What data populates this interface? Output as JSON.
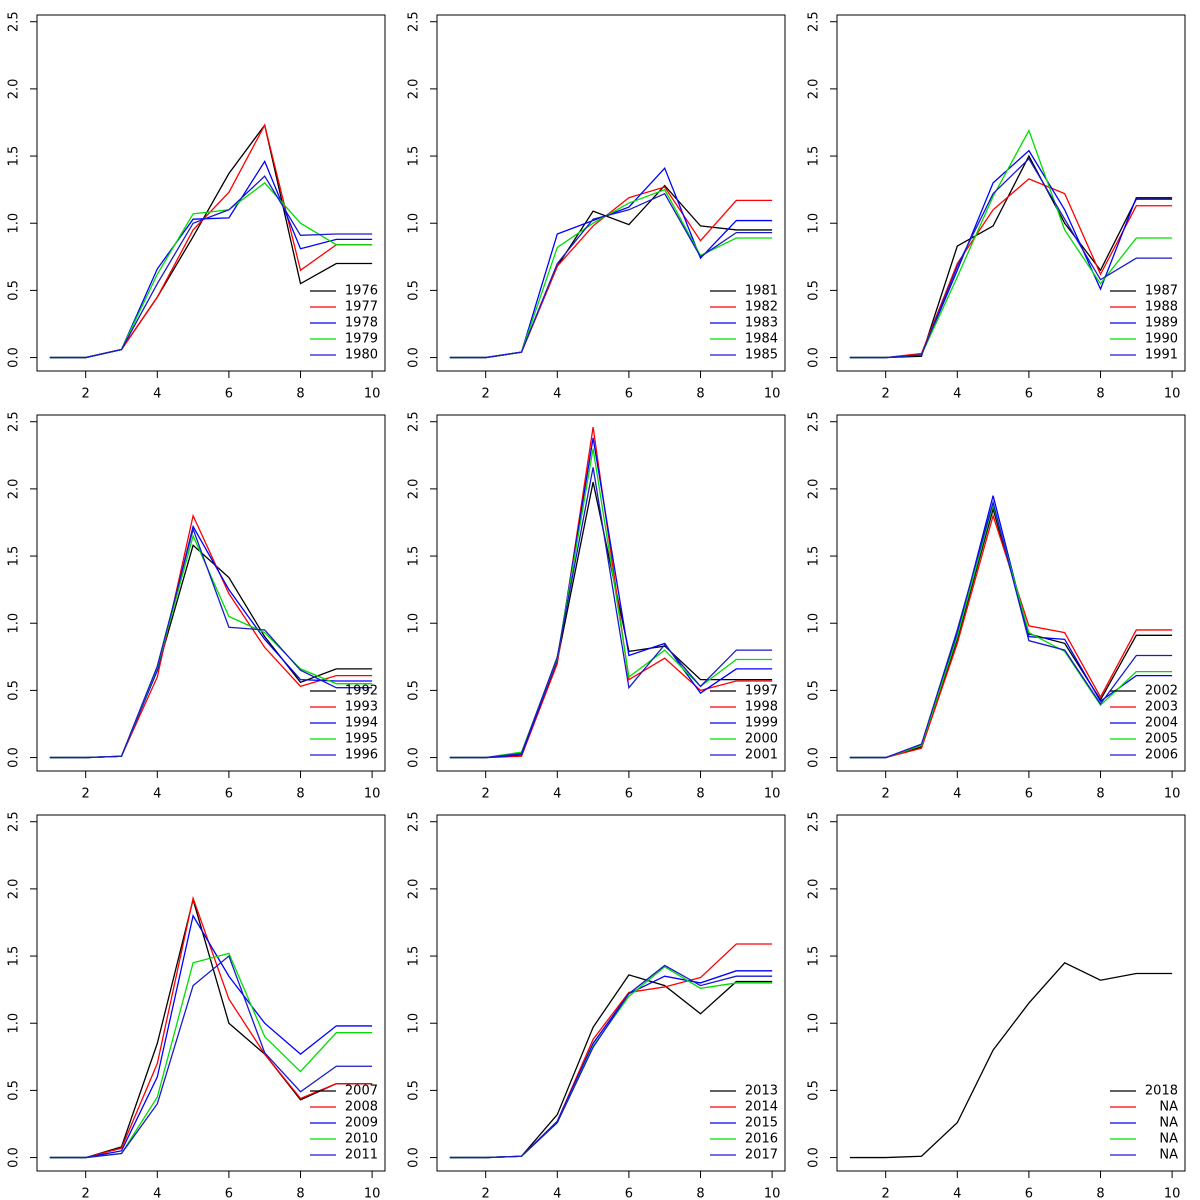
{
  "chart_data": [
    {
      "type": "line",
      "x": [
        1,
        2,
        3,
        4,
        5,
        6,
        7,
        8,
        9,
        10
      ],
      "xlim": [
        0.64,
        10.36
      ],
      "ylim": [
        -0.1,
        2.55
      ],
      "xticks": [
        2,
        4,
        6,
        8,
        10
      ],
      "yticks": [
        {
          "value": 0,
          "label": "0.0"
        },
        0.5,
        {
          "value": 1,
          "label": "1.0"
        },
        1.5,
        {
          "value": 2,
          "label": "2.0"
        },
        2.5
      ],
      "legend": "bottomright",
      "series": [
        {
          "name": "1976",
          "color": "#000000",
          "values": [
            0,
            0,
            0.06,
            0.45,
            0.9,
            1.37,
            1.73,
            0.55,
            0.7,
            0.7
          ]
        },
        {
          "name": "1977",
          "color": "#ff0000",
          "values": [
            0,
            0,
            0.06,
            0.45,
            0.95,
            1.23,
            1.73,
            0.65,
            0.84,
            0.84
          ]
        },
        {
          "name": "1978",
          "color": "#0000ff",
          "values": [
            0,
            0,
            0.06,
            0.66,
            1.03,
            1.04,
            1.46,
            0.81,
            0.88,
            0.88
          ]
        },
        {
          "name": "1979",
          "color": "#00dd00",
          "values": [
            0,
            0,
            0.06,
            0.62,
            1.07,
            1.1,
            1.3,
            1.0,
            0.84,
            0.84
          ]
        },
        {
          "name": "1980",
          "color": "#1a1acd",
          "values": [
            0,
            0,
            0.06,
            0.55,
            1.0,
            1.1,
            1.35,
            0.91,
            0.92,
            0.92
          ]
        }
      ]
    },
    {
      "type": "line",
      "x": [
        1,
        2,
        3,
        4,
        5,
        6,
        7,
        8,
        9,
        10
      ],
      "xlim": [
        0.64,
        10.36
      ],
      "ylim": [
        -0.1,
        2.55
      ],
      "xticks": [
        2,
        4,
        6,
        8,
        10
      ],
      "yticks": [
        {
          "value": 0,
          "label": "0.0"
        },
        0.5,
        {
          "value": 1,
          "label": "1.0"
        },
        1.5,
        {
          "value": 2,
          "label": "2.0"
        },
        2.5
      ],
      "legend": "bottomright",
      "series": [
        {
          "name": "1981",
          "color": "#000000",
          "values": [
            0,
            0,
            0.04,
            0.68,
            1.09,
            0.99,
            1.28,
            0.98,
            0.95,
            0.95
          ]
        },
        {
          "name": "1982",
          "color": "#ff0000",
          "values": [
            0,
            0,
            0.04,
            0.68,
            0.98,
            1.19,
            1.27,
            0.87,
            1.17,
            1.17
          ]
        },
        {
          "name": "1983",
          "color": "#0000ff",
          "values": [
            0,
            0,
            0.04,
            0.92,
            1.02,
            1.12,
            1.41,
            0.74,
            1.02,
            1.02
          ]
        },
        {
          "name": "1984",
          "color": "#00dd00",
          "values": [
            0,
            0,
            0.04,
            0.82,
            1.0,
            1.15,
            1.25,
            0.76,
            0.89,
            0.89
          ]
        },
        {
          "name": "1985",
          "color": "#1a1acd",
          "values": [
            0,
            0,
            0.04,
            0.7,
            1.03,
            1.1,
            1.22,
            0.75,
            0.93,
            0.93
          ]
        }
      ]
    },
    {
      "type": "line",
      "x": [
        1,
        2,
        3,
        4,
        5,
        6,
        7,
        8,
        9,
        10
      ],
      "xlim": [
        0.64,
        10.36
      ],
      "ylim": [
        -0.1,
        2.55
      ],
      "xticks": [
        2,
        4,
        6,
        8,
        10
      ],
      "yticks": [
        {
          "value": 0,
          "label": "0.0"
        },
        0.5,
        {
          "value": 1,
          "label": "1.0"
        },
        1.5,
        {
          "value": 2,
          "label": "2.0"
        },
        2.5
      ],
      "legend": "bottomright",
      "series": [
        {
          "name": "1987",
          "color": "#000000",
          "values": [
            0,
            0,
            0.01,
            0.83,
            0.98,
            1.5,
            1.0,
            0.65,
            1.18,
            1.18
          ]
        },
        {
          "name": "1988",
          "color": "#ff0000",
          "values": [
            0,
            0,
            0.03,
            0.7,
            1.1,
            1.33,
            1.22,
            0.62,
            1.13,
            1.13
          ]
        },
        {
          "name": "1989",
          "color": "#0000ff",
          "values": [
            0,
            0,
            0.02,
            0.65,
            1.3,
            1.54,
            1.1,
            0.51,
            1.19,
            1.19
          ]
        },
        {
          "name": "1990",
          "color": "#00dd00",
          "values": [
            0,
            0,
            0.02,
            0.6,
            1.2,
            1.69,
            0.95,
            0.55,
            0.89,
            0.89
          ]
        },
        {
          "name": "1991",
          "color": "#1a1acd",
          "values": [
            0,
            0,
            0.02,
            0.68,
            1.22,
            1.48,
            1.03,
            0.58,
            0.74,
            0.74
          ]
        }
      ]
    },
    {
      "type": "line",
      "x": [
        1,
        2,
        3,
        4,
        5,
        6,
        7,
        8,
        9,
        10
      ],
      "xlim": [
        0.64,
        10.36
      ],
      "ylim": [
        -0.1,
        2.55
      ],
      "xticks": [
        2,
        4,
        6,
        8,
        10
      ],
      "yticks": [
        {
          "value": 0,
          "label": "0.0"
        },
        0.5,
        {
          "value": 1,
          "label": "1.0"
        },
        1.5,
        {
          "value": 2,
          "label": "2.0"
        },
        2.5
      ],
      "legend": "bottomright",
      "series": [
        {
          "name": "1992",
          "color": "#000000",
          "values": [
            0,
            0,
            0.01,
            0.65,
            1.58,
            1.34,
            0.9,
            0.56,
            0.66,
            0.66
          ]
        },
        {
          "name": "1993",
          "color": "#ff0000",
          "values": [
            0,
            0,
            0.01,
            0.6,
            1.8,
            1.22,
            0.82,
            0.53,
            0.61,
            0.61
          ]
        },
        {
          "name": "1994",
          "color": "#0000ff",
          "values": [
            0,
            0,
            0.01,
            0.65,
            1.72,
            1.25,
            0.88,
            0.58,
            0.57,
            0.57
          ]
        },
        {
          "name": "1995",
          "color": "#00dd00",
          "values": [
            0,
            0,
            0.01,
            0.67,
            1.65,
            1.05,
            0.93,
            0.66,
            0.55,
            0.55
          ]
        },
        {
          "name": "1996",
          "color": "#1a1acd",
          "values": [
            0,
            0,
            0.01,
            0.68,
            1.7,
            0.97,
            0.95,
            0.65,
            0.52,
            0.52
          ]
        }
      ]
    },
    {
      "type": "line",
      "x": [
        1,
        2,
        3,
        4,
        5,
        6,
        7,
        8,
        9,
        10
      ],
      "xlim": [
        0.64,
        10.36
      ],
      "ylim": [
        -0.1,
        2.55
      ],
      "xticks": [
        2,
        4,
        6,
        8,
        10
      ],
      "yticks": [
        {
          "value": 0,
          "label": "0.0"
        },
        0.5,
        {
          "value": 1,
          "label": "1.0"
        },
        1.5,
        {
          "value": 2,
          "label": "2.0"
        },
        2.5
      ],
      "legend": "bottomright",
      "series": [
        {
          "name": "1997",
          "color": "#000000",
          "values": [
            0,
            0,
            0.02,
            0.72,
            2.05,
            0.79,
            0.83,
            0.58,
            0.58,
            0.58
          ]
        },
        {
          "name": "1998",
          "color": "#ff0000",
          "values": [
            0,
            0,
            0.01,
            0.7,
            2.46,
            0.58,
            0.74,
            0.5,
            0.57,
            0.57
          ]
        },
        {
          "name": "1999",
          "color": "#0000ff",
          "values": [
            0,
            0,
            0.02,
            0.73,
            2.38,
            0.76,
            0.85,
            0.48,
            0.66,
            0.66
          ]
        },
        {
          "name": "2000",
          "color": "#00dd00",
          "values": [
            0,
            0,
            0.04,
            0.74,
            2.3,
            0.6,
            0.8,
            0.53,
            0.73,
            0.73
          ]
        },
        {
          "name": "2001",
          "color": "#1a1acd",
          "values": [
            0,
            0,
            0.03,
            0.75,
            2.16,
            0.52,
            0.84,
            0.53,
            0.8,
            0.8
          ]
        }
      ]
    },
    {
      "type": "line",
      "x": [
        1,
        2,
        3,
        4,
        5,
        6,
        7,
        8,
        9,
        10
      ],
      "xlim": [
        0.64,
        10.36
      ],
      "ylim": [
        -0.1,
        2.55
      ],
      "xticks": [
        2,
        4,
        6,
        8,
        10
      ],
      "yticks": [
        {
          "value": 0,
          "label": "0.0"
        },
        0.5,
        {
          "value": 1,
          "label": "1.0"
        },
        1.5,
        {
          "value": 2,
          "label": "2.0"
        },
        2.5
      ],
      "legend": "bottomright",
      "series": [
        {
          "name": "2002",
          "color": "#000000",
          "values": [
            0,
            0,
            0.08,
            0.88,
            1.85,
            0.92,
            0.85,
            0.43,
            0.91,
            0.91
          ]
        },
        {
          "name": "2003",
          "color": "#ff0000",
          "values": [
            0,
            0,
            0.07,
            0.85,
            1.8,
            0.98,
            0.93,
            0.45,
            0.95,
            0.95
          ]
        },
        {
          "name": "2004",
          "color": "#0000ff",
          "values": [
            0,
            0,
            0.09,
            0.92,
            1.95,
            0.9,
            0.88,
            0.42,
            0.61,
            0.61
          ]
        },
        {
          "name": "2005",
          "color": "#00dd00",
          "values": [
            0,
            0,
            0.09,
            0.9,
            1.88,
            0.93,
            0.79,
            0.39,
            0.64,
            0.64
          ]
        },
        {
          "name": "2006",
          "color": "#1a1acd",
          "values": [
            0,
            0,
            0.1,
            0.95,
            1.9,
            0.87,
            0.8,
            0.4,
            0.76,
            0.76
          ]
        }
      ]
    },
    {
      "type": "line",
      "x": [
        1,
        2,
        3,
        4,
        5,
        6,
        7,
        8,
        9,
        10
      ],
      "xlim": [
        0.64,
        10.36
      ],
      "ylim": [
        -0.1,
        2.55
      ],
      "xticks": [
        2,
        4,
        6,
        8,
        10
      ],
      "yticks": [
        {
          "value": 0,
          "label": "0.0"
        },
        0.5,
        {
          "value": 1,
          "label": "1.0"
        },
        1.5,
        {
          "value": 2,
          "label": "2.0"
        },
        2.5
      ],
      "legend": "bottomright",
      "series": [
        {
          "name": "2007",
          "color": "#000000",
          "values": [
            0,
            0,
            0.08,
            0.85,
            1.92,
            1.0,
            0.77,
            0.43,
            0.55,
            0.55
          ]
        },
        {
          "name": "2008",
          "color": "#ff0000",
          "values": [
            0,
            0,
            0.07,
            0.7,
            1.93,
            1.18,
            0.77,
            0.44,
            0.55,
            0.55
          ]
        },
        {
          "name": "2009",
          "color": "#0000ff",
          "values": [
            0,
            0,
            0.05,
            0.6,
            1.8,
            1.35,
            1.0,
            0.77,
            0.98,
            0.98
          ]
        },
        {
          "name": "2010",
          "color": "#00dd00",
          "values": [
            0,
            0,
            0.03,
            0.45,
            1.45,
            1.52,
            0.9,
            0.64,
            0.93,
            0.93
          ]
        },
        {
          "name": "2011",
          "color": "#1a1acd",
          "values": [
            0,
            0,
            0.03,
            0.4,
            1.28,
            1.5,
            0.78,
            0.49,
            0.68,
            0.68
          ]
        }
      ]
    },
    {
      "type": "line",
      "x": [
        1,
        2,
        3,
        4,
        5,
        6,
        7,
        8,
        9,
        10
      ],
      "xlim": [
        0.64,
        10.36
      ],
      "ylim": [
        -0.1,
        2.55
      ],
      "xticks": [
        2,
        4,
        6,
        8,
        10
      ],
      "yticks": [
        {
          "value": 0,
          "label": "0.0"
        },
        0.5,
        {
          "value": 1,
          "label": "1.0"
        },
        1.5,
        {
          "value": 2,
          "label": "2.0"
        },
        2.5
      ],
      "legend": "bottomright",
      "series": [
        {
          "name": "2013",
          "color": "#000000",
          "values": [
            0,
            0,
            0.01,
            0.32,
            0.97,
            1.36,
            1.28,
            1.07,
            1.31,
            1.31
          ]
        },
        {
          "name": "2014",
          "color": "#ff0000",
          "values": [
            0,
            0,
            0.01,
            0.27,
            0.88,
            1.23,
            1.27,
            1.34,
            1.59,
            1.59
          ]
        },
        {
          "name": "2015",
          "color": "#0000ff",
          "values": [
            0,
            0,
            0.01,
            0.27,
            0.85,
            1.22,
            1.35,
            1.3,
            1.39,
            1.39
          ]
        },
        {
          "name": "2016",
          "color": "#00dd00",
          "values": [
            0,
            0,
            0.01,
            0.26,
            0.83,
            1.2,
            1.42,
            1.26,
            1.3,
            1.3
          ]
        },
        {
          "name": "2017",
          "color": "#1a1acd",
          "values": [
            0,
            0,
            0.01,
            0.26,
            0.82,
            1.22,
            1.43,
            1.28,
            1.35,
            1.35
          ]
        }
      ]
    },
    {
      "type": "line",
      "x": [
        1,
        2,
        3,
        4,
        5,
        6,
        7,
        8,
        9,
        10
      ],
      "xlim": [
        0.64,
        10.36
      ],
      "ylim": [
        -0.1,
        2.55
      ],
      "xticks": [
        2,
        4,
        6,
        8,
        10
      ],
      "yticks": [
        {
          "value": 0,
          "label": "0.0"
        },
        0.5,
        {
          "value": 1,
          "label": "1.0"
        },
        1.5,
        {
          "value": 2,
          "label": "2.0"
        },
        2.5
      ],
      "legend": "bottomright",
      "series": [
        {
          "name": "2018",
          "color": "#000000",
          "values": [
            0,
            0,
            0.01,
            0.26,
            0.8,
            1.15,
            1.45,
            1.32,
            1.37,
            1.37
          ]
        },
        {
          "name": "NA",
          "color": "#ff0000",
          "values": [
            null,
            null,
            null,
            null,
            null,
            null,
            null,
            null,
            null,
            null
          ]
        },
        {
          "name": "NA",
          "color": "#0000ff",
          "values": [
            null,
            null,
            null,
            null,
            null,
            null,
            null,
            null,
            null,
            null
          ]
        },
        {
          "name": "NA",
          "color": "#00dd00",
          "values": [
            null,
            null,
            null,
            null,
            null,
            null,
            null,
            null,
            null,
            null
          ]
        },
        {
          "name": "NA",
          "color": "#1a1acd",
          "values": [
            null,
            null,
            null,
            null,
            null,
            null,
            null,
            null,
            null,
            null
          ]
        }
      ]
    }
  ]
}
